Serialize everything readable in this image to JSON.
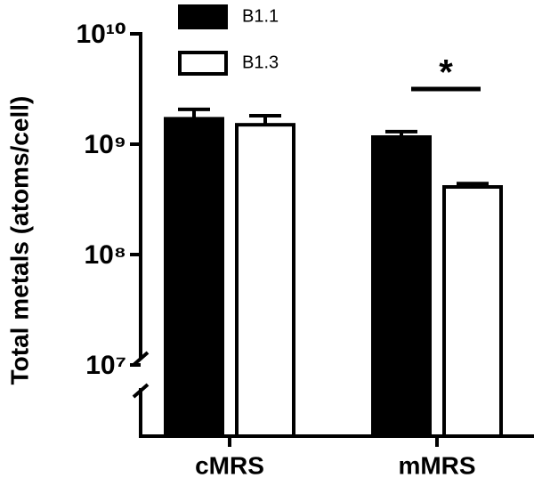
{
  "chart_data": {
    "type": "bar",
    "y_label": "Total metals (atoms/cell)",
    "categories": [
      "cMRS",
      "mMRS"
    ],
    "series": [
      {
        "name": "B1.1",
        "color": "#000000",
        "values": [
          1700000000,
          1160000000
        ],
        "errors": [
          370000000,
          140000000
        ]
      },
      {
        "name": "B1.3",
        "color": "#ffffff",
        "values": [
          1500000000,
          410000000
        ],
        "errors": [
          310000000,
          30000000
        ]
      }
    ],
    "annotation": "*",
    "log_scale": true,
    "ylim": [
      10000000,
      10000000000
    ],
    "yticks": [
      {
        "value": 10000000,
        "label": "10⁷"
      },
      {
        "value": 100000000,
        "label": "10⁸"
      },
      {
        "value": 1000000000,
        "label": "10⁹"
      },
      {
        "value": 10000000000,
        "label": "10¹⁰"
      }
    ],
    "legend": "top"
  }
}
